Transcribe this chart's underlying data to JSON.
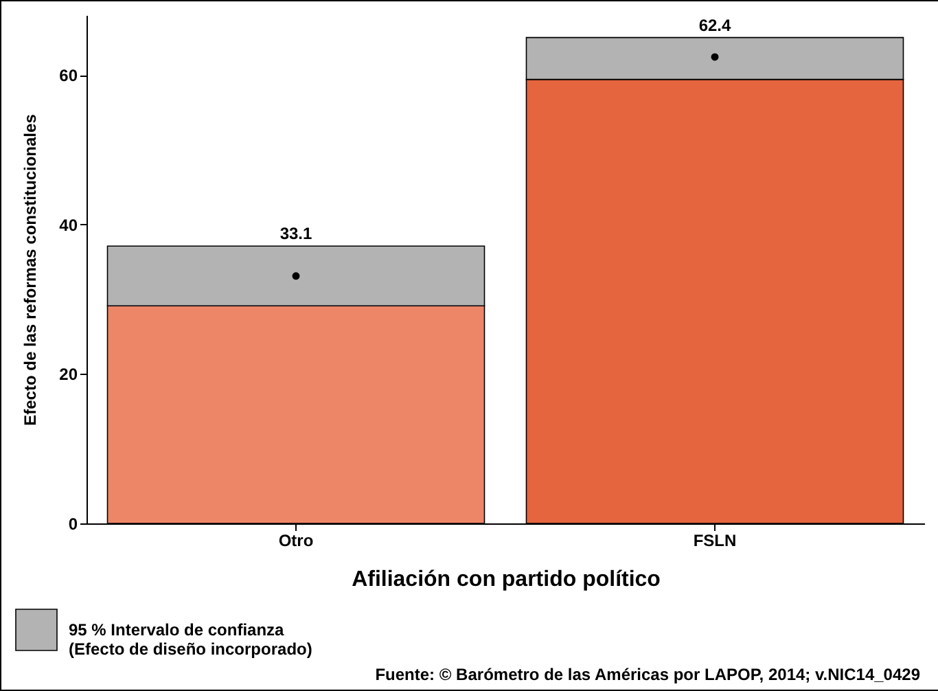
{
  "chart_data": {
    "type": "bar",
    "stacked": true,
    "categories": [
      "Otro",
      "FSLN"
    ],
    "xlabel": "Afiliación con partido político",
    "ylabel": "Efecto de las reformas constitucionales",
    "ylim": [
      0,
      68
    ],
    "yticks": [
      0,
      20,
      40,
      60
    ],
    "grid": false,
    "legend": "bottom left",
    "series": [
      {
        "type": "bar",
        "colors": [
          "#ec8667",
          "#e5653e"
        ],
        "values": [
          29.1,
          59.4
        ]
      },
      {
        "type": "bar",
        "name": "95 % Intervalo de confianza\n(Efecto de diseño incorporado)",
        "color": "#b3b3b3",
        "values": [
          8.0,
          5.6
        ]
      },
      {
        "type": "scatter",
        "marker": "circle",
        "color": "#000000",
        "x": [
          "Otro",
          "FSLN"
        ],
        "values": [
          33.1,
          62.4
        ],
        "value_labels": [
          "33.1",
          "62.4"
        ]
      }
    ],
    "annotations": [
      "Fuente: © Barómetro de las Américas por LAPOP, 2014; v.NIC14_0429"
    ]
  }
}
